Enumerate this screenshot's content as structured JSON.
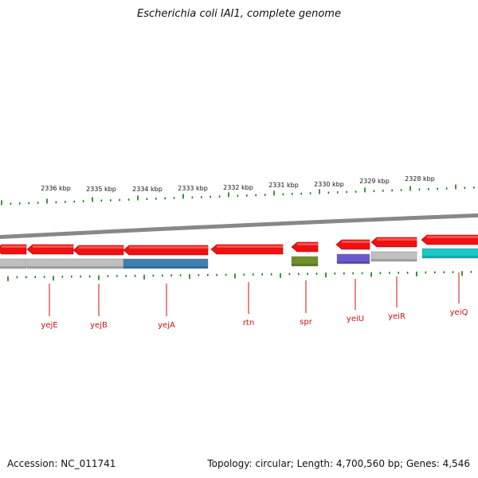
{
  "title": "Escherichia coli IAI1, complete genome",
  "footer": {
    "accession": "Accession: NC_011741",
    "summary": "Topology: circular; Length: 4,700,560 bp; Genes: 4,546"
  },
  "colors": {
    "gene_red": "#ee1111",
    "backbone": "#888888",
    "tick": "#117711",
    "label": "#cc1111",
    "cog_gray": "#c0c0c0",
    "cog_steel_blue": "#3f7fb5",
    "cog_olive": "#6f8f2a",
    "cog_purple": "#6a5acd",
    "cog_cyan": "#17c9c9"
  },
  "scale": {
    "unit": "kbp",
    "labels": [
      "2336 kbp",
      "2335 kbp",
      "2334 kbp",
      "2333 kbp",
      "2332 kbp",
      "2331 kbp",
      "2330 kbp",
      "2329 kbp",
      "2328 kbp"
    ]
  },
  "genes": [
    {
      "name": "yejE",
      "cog_color": "cog_gray"
    },
    {
      "name": "yejB",
      "cog_color": "cog_gray"
    },
    {
      "name": "yejA",
      "cog_color": "cog_steel_blue"
    },
    {
      "name": "rtn",
      "cog_color": null
    },
    {
      "name": "spr",
      "cog_color": "cog_olive"
    },
    {
      "name": "yeiU",
      "cog_color": "cog_purple"
    },
    {
      "name": "yeiR",
      "cog_color": "cog_gray"
    },
    {
      "name": "yeiQ",
      "cog_color": "cog_cyan"
    }
  ]
}
